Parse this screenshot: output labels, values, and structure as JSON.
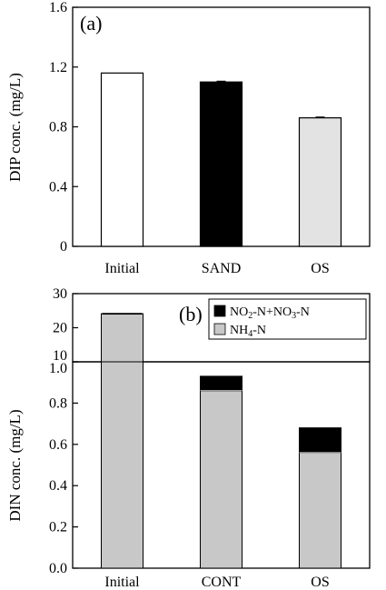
{
  "chart_data": [
    {
      "type": "bar",
      "panel_label": "(a)",
      "ylabel": "DIP conc. (mg/L)",
      "ylim": [
        0,
        1.6
      ],
      "yticks": [
        "0",
        "0.4",
        "0.8",
        "1.2",
        "1.6"
      ],
      "categories": [
        "Initial",
        "SAND",
        "OS"
      ],
      "values": [
        1.16,
        1.1,
        0.86
      ],
      "errors": [
        0,
        0.005,
        0.005
      ],
      "bar_colors": [
        "#ffffff",
        "#000000",
        "#e3e3e3"
      ]
    },
    {
      "type": "bar",
      "stacked": true,
      "broken_axis": true,
      "panel_label": "(b)",
      "ylabel": "DIN conc. (mg/L)",
      "upper_ylim": [
        10,
        30
      ],
      "upper_yticks": [
        "10",
        "20",
        "30"
      ],
      "lower_ylim": [
        0,
        1.0
      ],
      "lower_yticks": [
        "0.0",
        "0.2",
        "0.4",
        "0.6",
        "0.8",
        "1.0"
      ],
      "categories": [
        "Initial",
        "CONT",
        "OS"
      ],
      "series": [
        {
          "name": "NH₄-N",
          "values": [
            24.1,
            0.86,
            0.56
          ],
          "color": "#c8c8c8"
        },
        {
          "name": "NO₂-N+NO₃-N",
          "values": [
            0,
            0.07,
            0.12
          ],
          "color": "#000000"
        }
      ],
      "legend": {
        "position": "top-right",
        "entries": [
          {
            "parts": [
              [
                "NO",
                false
              ],
              [
                "2",
                true
              ],
              [
                "-N+NO",
                false
              ],
              [
                "3",
                true
              ],
              [
                "-N",
                false
              ]
            ],
            "color": "#000000"
          },
          {
            "parts": [
              [
                "NH",
                false
              ],
              [
                "4",
                true
              ],
              [
                "-N",
                false
              ]
            ],
            "color": "#c8c8c8"
          }
        ]
      }
    }
  ]
}
